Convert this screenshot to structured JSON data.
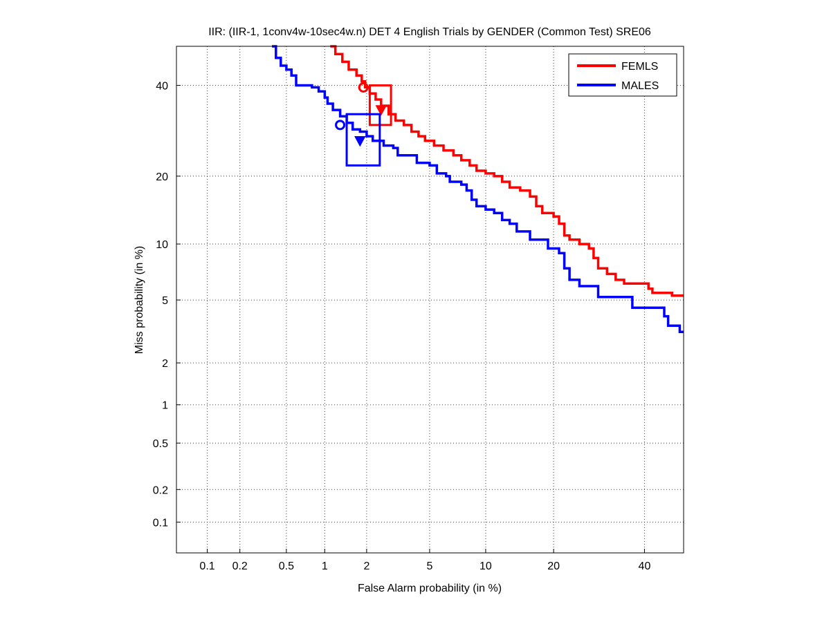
{
  "chart_data": {
    "type": "line",
    "title": "IIR: (IIR-1, 1conv4w-10sec4w.n) DET 4 English Trials by GENDER (Common Test) SRE06",
    "xlabel": "False Alarm probability (in %)",
    "ylabel": "Miss probability (in %)",
    "x_scale": "normal-deviate (probit)",
    "y_scale": "normal-deviate (probit)",
    "xlim": [
      0.05,
      50
    ],
    "ylim": [
      0.05,
      50
    ],
    "x_ticks": [
      0.1,
      0.2,
      0.5,
      1,
      2,
      5,
      10,
      20,
      40
    ],
    "y_ticks": [
      0.1,
      0.2,
      0.5,
      1,
      2,
      5,
      10,
      20,
      40
    ],
    "x_tick_labels": [
      "0.1",
      "0.2",
      "0.5",
      "1",
      "2",
      "5",
      "10",
      "20",
      "40"
    ],
    "y_tick_labels": [
      "0.1",
      "0.2",
      "0.5",
      "1",
      "2",
      "5",
      "10",
      "20",
      "40"
    ],
    "grid": true,
    "legend_position": "top-right",
    "series": [
      {
        "name": "FEMLS",
        "color": "#ff0000",
        "points": [
          [
            1.1,
            50
          ],
          [
            1.2,
            48
          ],
          [
            1.35,
            46
          ],
          [
            1.5,
            44
          ],
          [
            1.7,
            42.5
          ],
          [
            1.85,
            41
          ],
          [
            1.95,
            39.5
          ],
          [
            2.1,
            38
          ],
          [
            2.3,
            36.5
          ],
          [
            2.5,
            35
          ],
          [
            2.8,
            33
          ],
          [
            3.1,
            31.5
          ],
          [
            3.5,
            30.5
          ],
          [
            3.9,
            29
          ],
          [
            4.3,
            28
          ],
          [
            4.7,
            27
          ],
          [
            5.3,
            26
          ],
          [
            6.0,
            25
          ],
          [
            6.8,
            24
          ],
          [
            7.5,
            23
          ],
          [
            8.3,
            22
          ],
          [
            9.0,
            21
          ],
          [
            10.0,
            20.5
          ],
          [
            11.0,
            20
          ],
          [
            12.0,
            19
          ],
          [
            13.0,
            18
          ],
          [
            14.5,
            17.5
          ],
          [
            16.0,
            16.5
          ],
          [
            17.0,
            15
          ],
          [
            18.0,
            14
          ],
          [
            20.0,
            13.5
          ],
          [
            21.0,
            12.5
          ],
          [
            22.0,
            11
          ],
          [
            23.0,
            10.5
          ],
          [
            25.0,
            10
          ],
          [
            27.0,
            9.5
          ],
          [
            28.0,
            8.5
          ],
          [
            29.0,
            7.5
          ],
          [
            31.0,
            7
          ],
          [
            33.0,
            6.5
          ],
          [
            35.0,
            6.2
          ],
          [
            39.0,
            6.2
          ],
          [
            41.0,
            5.8
          ],
          [
            42.0,
            5.5
          ],
          [
            46.0,
            5.5
          ],
          [
            47.0,
            5.3
          ],
          [
            50.0,
            5.3
          ]
        ],
        "actual_dcf": [
          2.5,
          34
        ],
        "min_dcf": [
          1.9,
          39.5
        ],
        "confidence_box": {
          "x": [
            2.1,
            2.9
          ],
          "y": [
            30.5,
            40
          ]
        }
      },
      {
        "name": "MALES",
        "color": "#0000ff",
        "points": [
          [
            0.38,
            50
          ],
          [
            0.41,
            47
          ],
          [
            0.45,
            45
          ],
          [
            0.5,
            44
          ],
          [
            0.55,
            42.5
          ],
          [
            0.6,
            40
          ],
          [
            0.7,
            40
          ],
          [
            0.8,
            39.5
          ],
          [
            0.9,
            38.5
          ],
          [
            1.0,
            37
          ],
          [
            1.05,
            35.5
          ],
          [
            1.15,
            34
          ],
          [
            1.3,
            32.5
          ],
          [
            1.45,
            31
          ],
          [
            1.6,
            29.5
          ],
          [
            1.8,
            29
          ],
          [
            2.0,
            28
          ],
          [
            2.2,
            27
          ],
          [
            2.6,
            26
          ],
          [
            3.0,
            25.5
          ],
          [
            3.2,
            24
          ],
          [
            4.0,
            24
          ],
          [
            4.2,
            22.5
          ],
          [
            5.0,
            22
          ],
          [
            5.5,
            20.5
          ],
          [
            6.2,
            20
          ],
          [
            6.5,
            19
          ],
          [
            7.5,
            18.5
          ],
          [
            8.0,
            17.5
          ],
          [
            8.5,
            16
          ],
          [
            9.0,
            15
          ],
          [
            10.0,
            14.5
          ],
          [
            11.0,
            14
          ],
          [
            12.0,
            13
          ],
          [
            13.0,
            12.5
          ],
          [
            14.0,
            11.5
          ],
          [
            16.0,
            10.5
          ],
          [
            18.0,
            10.5
          ],
          [
            19.0,
            9.5
          ],
          [
            21.0,
            9
          ],
          [
            22.0,
            7.5
          ],
          [
            23.0,
            6.5
          ],
          [
            25.0,
            6
          ],
          [
            28.0,
            6
          ],
          [
            29.0,
            5.2
          ],
          [
            36.0,
            5.2
          ],
          [
            37.0,
            4.5
          ],
          [
            44.0,
            4.5
          ],
          [
            45.0,
            4
          ],
          [
            46.0,
            3.5
          ],
          [
            48.0,
            3.5
          ],
          [
            49.0,
            3.2
          ],
          [
            50.0,
            3.2
          ]
        ],
        "actual_dcf": [
          1.8,
          27
        ],
        "min_dcf": [
          1.3,
          30.5
        ],
        "confidence_box": {
          "x": [
            1.45,
            2.45
          ],
          "y": [
            22,
            33
          ]
        }
      }
    ]
  }
}
